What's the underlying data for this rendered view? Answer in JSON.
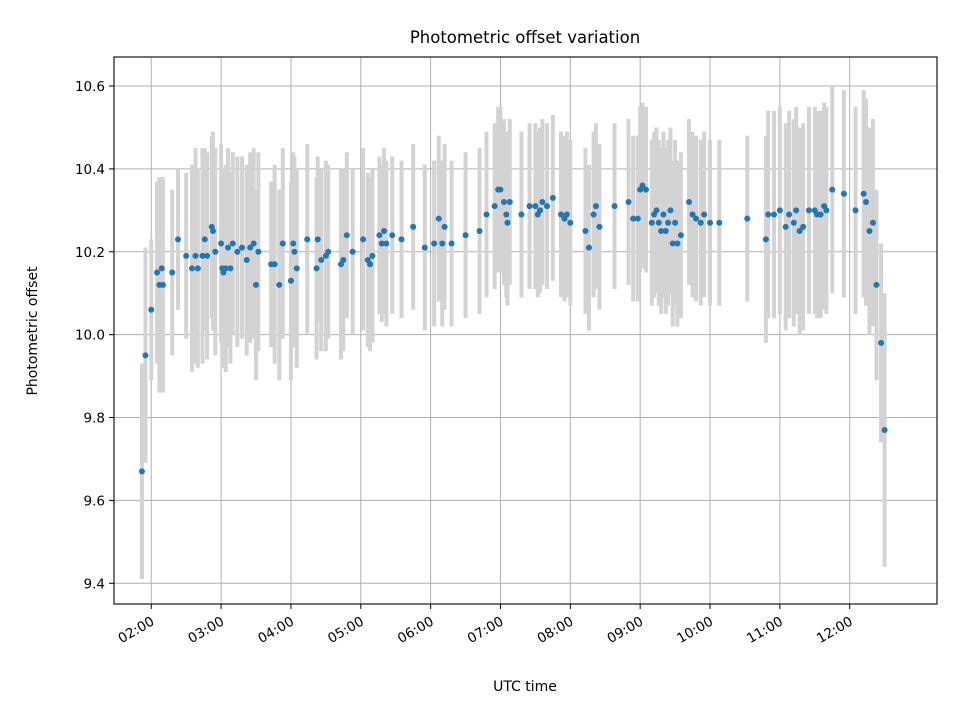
{
  "chart_data": {
    "type": "scatter",
    "title": "Photometric offset variation",
    "xlabel": "UTC time",
    "ylabel": "Photometric offset",
    "x_format": "HH:MM",
    "xlim": [
      "01:28",
      "13:15"
    ],
    "ylim": [
      9.35,
      10.67
    ],
    "x_ticks": [
      "02:00",
      "03:00",
      "04:00",
      "05:00",
      "06:00",
      "07:00",
      "08:00",
      "09:00",
      "10:00",
      "11:00",
      "12:00"
    ],
    "y_ticks": [
      9.4,
      9.6,
      9.8,
      10.0,
      10.2,
      10.4,
      10.6
    ],
    "grid": true,
    "colors": {
      "marker": "#1f77b4",
      "errorbar": "#d3d3d3",
      "grid": "#b0b0b0"
    },
    "series": [
      {
        "errorbar": true,
        "points": [
          [
            "01:52",
            9.67,
            0.26
          ],
          [
            "01:55",
            9.95,
            0.26
          ],
          [
            "02:00",
            10.06,
            0.17
          ],
          [
            "02:05",
            10.15,
            0.22
          ],
          [
            "02:07",
            10.12,
            0.26
          ],
          [
            "02:09",
            10.16,
            0.22
          ],
          [
            "02:10",
            10.12,
            0.26
          ],
          [
            "02:18",
            10.15,
            0.2
          ],
          [
            "02:23",
            10.23,
            0.17
          ],
          [
            "02:30",
            10.19,
            0.2
          ],
          [
            "02:35",
            10.16,
            0.25
          ],
          [
            "02:38",
            10.19,
            0.26
          ],
          [
            "02:40",
            10.16,
            0.24
          ],
          [
            "02:44",
            10.19,
            0.26
          ],
          [
            "02:46",
            10.23,
            0.22
          ],
          [
            "02:48",
            10.19,
            0.25
          ],
          [
            "02:52",
            10.26,
            0.22
          ],
          [
            "02:53",
            10.25,
            0.24
          ],
          [
            "02:55",
            10.2,
            0.25
          ],
          [
            "03:00",
            10.22,
            0.24
          ],
          [
            "03:01",
            10.16,
            0.24
          ],
          [
            "03:02",
            10.15,
            0.23
          ],
          [
            "03:04",
            10.16,
            0.25
          ],
          [
            "03:06",
            10.21,
            0.24
          ],
          [
            "03:08",
            10.16,
            0.23
          ],
          [
            "03:10",
            10.22,
            0.22
          ],
          [
            "03:14",
            10.2,
            0.23
          ],
          [
            "03:18",
            10.21,
            0.22
          ],
          [
            "03:22",
            10.18,
            0.23
          ],
          [
            "03:25",
            10.21,
            0.23
          ],
          [
            "03:28",
            10.22,
            0.23
          ],
          [
            "03:30",
            10.12,
            0.23
          ],
          [
            "03:32",
            10.2,
            0.24
          ],
          [
            "03:43",
            10.17,
            0.2
          ],
          [
            "03:46",
            10.17,
            0.24
          ],
          [
            "03:50",
            10.12,
            0.23
          ],
          [
            "03:53",
            10.22,
            0.23
          ],
          [
            "04:00",
            10.13,
            0.24
          ],
          [
            "04:02",
            10.22,
            0.22
          ],
          [
            "04:03",
            10.2,
            0.23
          ],
          [
            "04:05",
            10.16,
            0.24
          ],
          [
            "04:14",
            10.23,
            0.23
          ],
          [
            "04:22",
            10.16,
            0.22
          ],
          [
            "04:23",
            10.23,
            0.2
          ],
          [
            "04:26",
            10.18,
            0.22
          ],
          [
            "04:30",
            10.19,
            0.23
          ],
          [
            "04:32",
            10.2,
            0.21
          ],
          [
            "04:43",
            10.17,
            0.23
          ],
          [
            "04:45",
            10.18,
            0.22
          ],
          [
            "04:48",
            10.24,
            0.2
          ],
          [
            "04:53",
            10.2,
            0.2
          ],
          [
            "05:02",
            10.23,
            0.22
          ],
          [
            "05:06",
            10.18,
            0.21
          ],
          [
            "05:08",
            10.17,
            0.21
          ],
          [
            "05:10",
            10.19,
            0.21
          ],
          [
            "05:16",
            10.24,
            0.19
          ],
          [
            "05:18",
            10.22,
            0.19
          ],
          [
            "05:20",
            10.25,
            0.2
          ],
          [
            "05:22",
            10.22,
            0.2
          ],
          [
            "05:27",
            10.24,
            0.19
          ],
          [
            "05:35",
            10.23,
            0.19
          ],
          [
            "05:45",
            10.26,
            0.2
          ],
          [
            "05:55",
            10.21,
            0.2
          ],
          [
            "06:03",
            10.22,
            0.2
          ],
          [
            "06:07",
            10.28,
            0.2
          ],
          [
            "06:10",
            10.22,
            0.2
          ],
          [
            "06:12",
            10.26,
            0.2
          ],
          [
            "06:18",
            10.22,
            0.2
          ],
          [
            "06:30",
            10.24,
            0.2
          ],
          [
            "06:42",
            10.25,
            0.2
          ],
          [
            "06:48",
            10.29,
            0.2
          ],
          [
            "06:55",
            10.31,
            0.2
          ],
          [
            "06:58",
            10.35,
            0.2
          ],
          [
            "07:00",
            10.35,
            0.2
          ],
          [
            "07:03",
            10.32,
            0.2
          ],
          [
            "07:05",
            10.29,
            0.2
          ],
          [
            "07:06",
            10.27,
            0.2
          ],
          [
            "07:08",
            10.32,
            0.2
          ],
          [
            "07:18",
            10.29,
            0.2
          ],
          [
            "07:25",
            10.31,
            0.2
          ],
          [
            "07:30",
            10.31,
            0.2
          ],
          [
            "07:32",
            10.29,
            0.2
          ],
          [
            "07:34",
            10.3,
            0.2
          ],
          [
            "07:36",
            10.32,
            0.2
          ],
          [
            "07:40",
            10.31,
            0.2
          ],
          [
            "07:45",
            10.33,
            0.2
          ],
          [
            "07:52",
            10.29,
            0.2
          ],
          [
            "07:55",
            10.28,
            0.2
          ],
          [
            "07:57",
            10.29,
            0.2
          ],
          [
            "08:00",
            10.27,
            0.2
          ],
          [
            "08:13",
            10.25,
            0.2
          ],
          [
            "08:16",
            10.21,
            0.2
          ],
          [
            "08:20",
            10.29,
            0.2
          ],
          [
            "08:22",
            10.31,
            0.2
          ],
          [
            "08:25",
            10.26,
            0.2
          ],
          [
            "08:38",
            10.31,
            0.2
          ],
          [
            "08:50",
            10.32,
            0.2
          ],
          [
            "08:54",
            10.28,
            0.2
          ],
          [
            "08:58",
            10.28,
            0.2
          ],
          [
            "09:00",
            10.35,
            0.2
          ],
          [
            "09:02",
            10.36,
            0.2
          ],
          [
            "09:05",
            10.35,
            0.2
          ],
          [
            "09:10",
            10.27,
            0.2
          ],
          [
            "09:12",
            10.29,
            0.2
          ],
          [
            "09:14",
            10.3,
            0.2
          ],
          [
            "09:16",
            10.27,
            0.2
          ],
          [
            "09:18",
            10.25,
            0.2
          ],
          [
            "09:20",
            10.29,
            0.2
          ],
          [
            "09:22",
            10.25,
            0.2
          ],
          [
            "09:24",
            10.27,
            0.2
          ],
          [
            "09:26",
            10.3,
            0.2
          ],
          [
            "09:28",
            10.22,
            0.2
          ],
          [
            "09:30",
            10.27,
            0.2
          ],
          [
            "09:32",
            10.22,
            0.2
          ],
          [
            "09:35",
            10.24,
            0.2
          ],
          [
            "09:42",
            10.32,
            0.2
          ],
          [
            "09:45",
            10.29,
            0.2
          ],
          [
            "09:48",
            10.28,
            0.2
          ],
          [
            "09:52",
            10.27,
            0.2
          ],
          [
            "09:55",
            10.29,
            0.2
          ],
          [
            "10:00",
            10.27,
            0.2
          ],
          [
            "10:08",
            10.27,
            0.2
          ],
          [
            "10:32",
            10.28,
            0.2
          ],
          [
            "10:48",
            10.23,
            0.25
          ],
          [
            "10:50",
            10.29,
            0.25
          ],
          [
            "10:55",
            10.29,
            0.25
          ],
          [
            "11:00",
            10.3,
            0.25
          ],
          [
            "11:05",
            10.26,
            0.25
          ],
          [
            "11:08",
            10.29,
            0.25
          ],
          [
            "11:12",
            10.27,
            0.25
          ],
          [
            "11:14",
            10.3,
            0.25
          ],
          [
            "11:17",
            10.25,
            0.25
          ],
          [
            "11:20",
            10.26,
            0.25
          ],
          [
            "11:25",
            10.3,
            0.25
          ],
          [
            "11:30",
            10.3,
            0.25
          ],
          [
            "11:32",
            10.29,
            0.25
          ],
          [
            "11:35",
            10.29,
            0.25
          ],
          [
            "11:38",
            10.31,
            0.25
          ],
          [
            "11:40",
            10.3,
            0.25
          ],
          [
            "11:45",
            10.35,
            0.25
          ],
          [
            "11:55",
            10.34,
            0.25
          ],
          [
            "12:05",
            10.3,
            0.25
          ],
          [
            "12:12",
            10.34,
            0.25
          ],
          [
            "12:14",
            10.32,
            0.25
          ],
          [
            "12:17",
            10.25,
            0.25
          ],
          [
            "12:20",
            10.27,
            0.25
          ],
          [
            "12:23",
            10.12,
            0.23
          ],
          [
            "12:27",
            9.98,
            0.24
          ],
          [
            "12:30",
            9.77,
            0.33
          ]
        ]
      }
    ]
  }
}
